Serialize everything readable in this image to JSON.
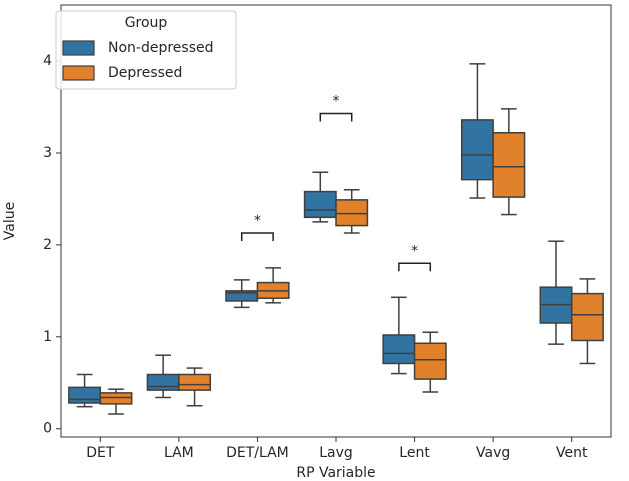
{
  "chart_data": {
    "type": "box",
    "x_label": "RP Variable",
    "y_label": "Value",
    "categories": [
      "DET",
      "LAM",
      "DET/LAM",
      "Lavg",
      "Lent",
      "Vavg",
      "Vent"
    ],
    "ylim": [
      -0.09,
      4.61
    ],
    "yticks": [
      0,
      1,
      2,
      3,
      4
    ],
    "legend": {
      "title": "Group",
      "loc": "upper left"
    },
    "series": [
      {
        "name": "Non-depressed",
        "color": "#3274a1",
        "whislo": [
          0.24,
          0.34,
          1.32,
          2.25,
          0.6,
          2.51,
          0.92
        ],
        "q1": [
          0.28,
          0.42,
          1.39,
          2.3,
          0.71,
          2.71,
          1.15
        ],
        "med": [
          0.32,
          0.46,
          1.48,
          2.38,
          0.82,
          2.98,
          1.35
        ],
        "q3": [
          0.45,
          0.59,
          1.5,
          2.58,
          1.02,
          3.36,
          1.54
        ],
        "whishi": [
          0.59,
          0.8,
          1.62,
          2.79,
          1.43,
          3.97,
          2.04
        ]
      },
      {
        "name": "Depressed",
        "color": "#e1812c",
        "whislo": [
          0.16,
          0.25,
          1.37,
          2.13,
          0.4,
          2.33,
          0.71
        ],
        "q1": [
          0.27,
          0.42,
          1.42,
          2.21,
          0.54,
          2.52,
          0.96
        ],
        "med": [
          0.34,
          0.48,
          1.5,
          2.34,
          0.75,
          2.85,
          1.24
        ],
        "q3": [
          0.39,
          0.59,
          1.59,
          2.49,
          0.93,
          3.22,
          1.47
        ],
        "whishi": [
          0.43,
          0.66,
          1.75,
          2.6,
          1.05,
          3.48,
          1.63
        ]
      }
    ],
    "annotations": [
      {
        "category": "DET/LAM",
        "y": 2.13,
        "label": "*"
      },
      {
        "category": "Lavg",
        "y": 3.43,
        "label": "*"
      },
      {
        "category": "Lent",
        "y": 1.8,
        "label": "*"
      }
    ]
  }
}
